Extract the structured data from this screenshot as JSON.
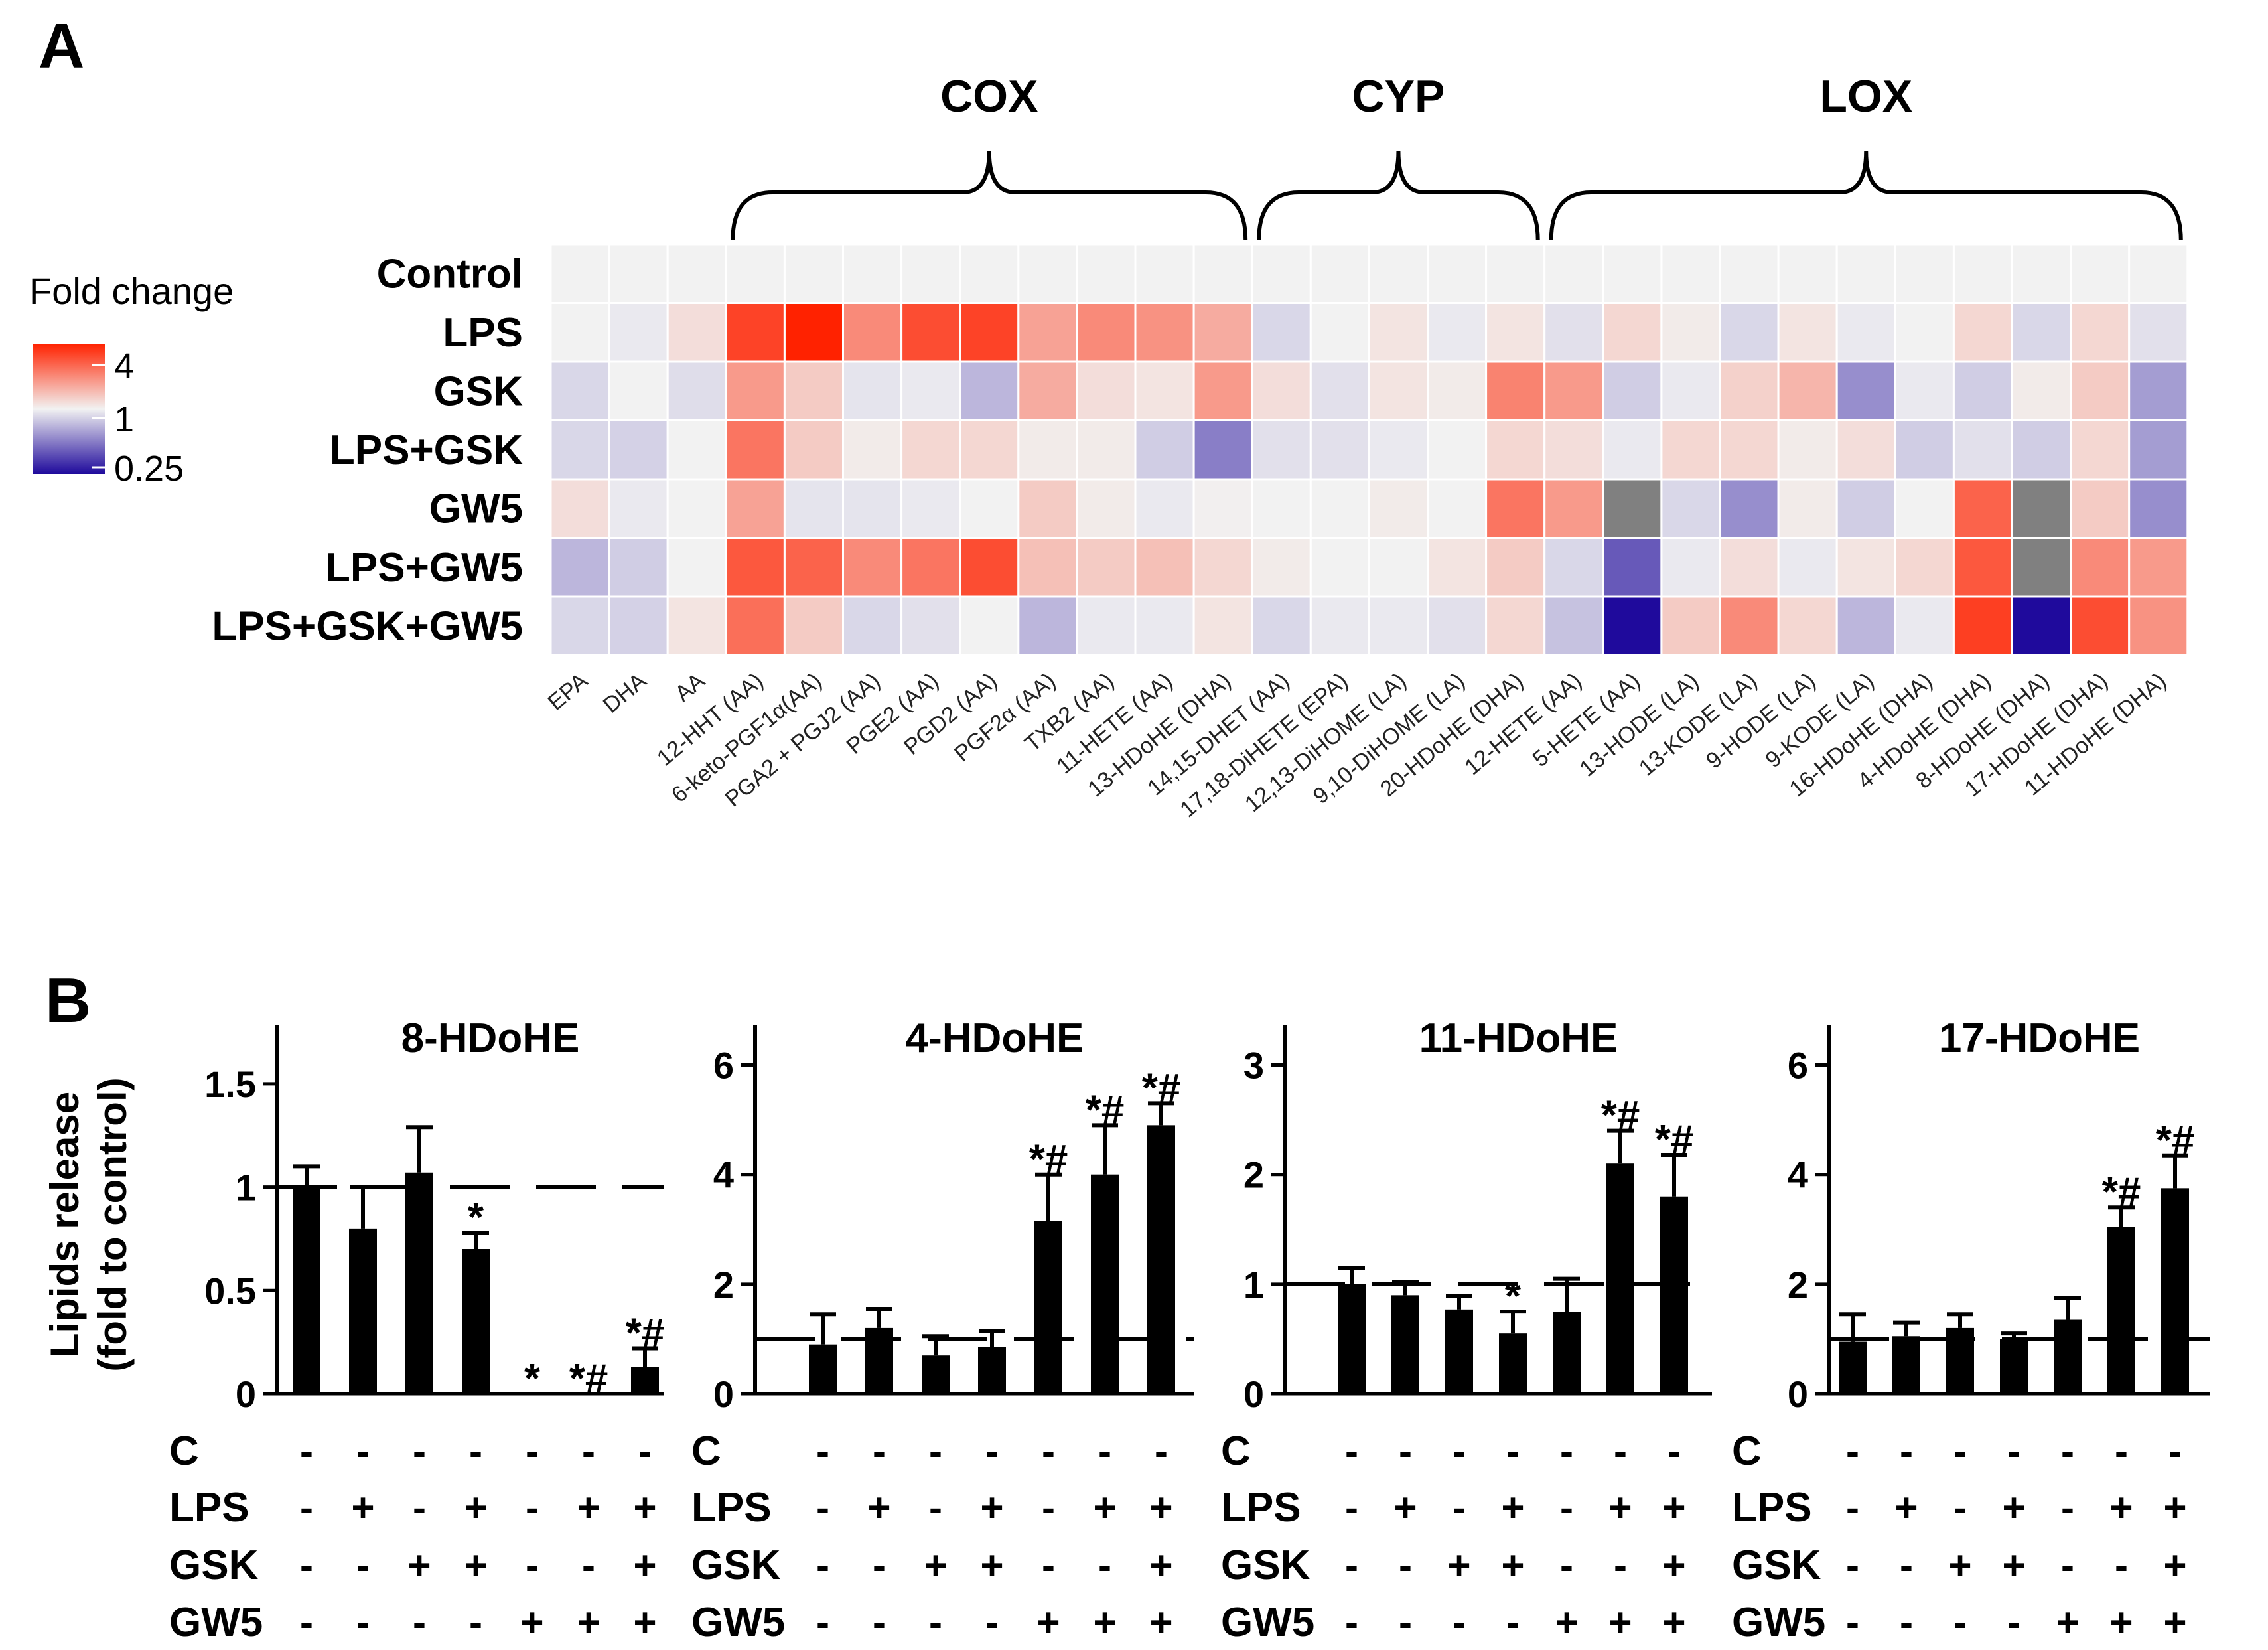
{
  "chart_data": [
    {
      "type": "heatmap",
      "panel": "A",
      "legend": {
        "title": "Fold change",
        "ticks": [
          "4",
          "1",
          "0.25"
        ]
      },
      "groups": [
        {
          "name": "COX",
          "from": "12-HHT (AA)",
          "to": "13-HDoHE (DHA)"
        },
        {
          "name": "CYP",
          "from": "14,15-DHET (AA)",
          "to": "20-HDoHE (DHA)"
        },
        {
          "name": "LOX",
          "from": "12-HETE (AA)",
          "to": "11-HDoHE (DHA)"
        }
      ],
      "rows": [
        "Control",
        "LPS",
        "GSK",
        "LPS+GSK",
        "GW5",
        "LPS+GW5",
        "LPS+GSK+GW5"
      ],
      "columns": [
        "EPA",
        "DHA",
        "AA",
        "12-HHT (AA)",
        "6-keto-PGF1α(AA)",
        "PGA2 + PGJ2 (AA)",
        "PGE2 (AA)",
        "PGD2 (AA)",
        "PGF2α (AA)",
        "TXB2 (AA)",
        "11-HETE (AA)",
        "13-HDoHE (DHA)",
        "14,15-DHET (AA)",
        "17,18-DiHETE (EPA)",
        "12,13-DiHOME (LA)",
        "9,10-DiHOME (LA)",
        "20-HDoHE (DHA)",
        "12-HETE (AA)",
        "5-HETE (AA)",
        "13-HODE (LA)",
        "13-KODE (LA)",
        "9-HODE (LA)",
        "9-KODE (LA)",
        "16-HDoHE (DHA)",
        "4-HDoHE (DHA)",
        "8-HDoHE (DHA)",
        "17-HDoHE (DHA)",
        "11-HDoHE (DHA)"
      ],
      "values": [
        [
          1,
          1,
          1,
          1,
          1,
          1,
          1,
          1,
          1,
          1,
          1,
          1,
          1,
          1,
          1,
          1,
          1,
          1,
          1,
          1,
          1,
          1,
          1,
          1,
          1,
          1,
          1,
          1
        ],
        [
          1,
          0.95,
          1.15,
          3.2,
          4.0,
          2.0,
          3.0,
          3.2,
          1.7,
          2.0,
          1.9,
          1.6,
          0.85,
          1,
          1.1,
          0.95,
          1.1,
          0.9,
          1.2,
          1.05,
          0.85,
          1.1,
          0.95,
          1,
          1.2,
          0.85,
          1.2,
          0.9
        ],
        [
          0.85,
          1,
          0.88,
          1.8,
          1.3,
          0.92,
          0.95,
          0.7,
          1.6,
          1.15,
          1.1,
          1.8,
          1.15,
          0.9,
          1.1,
          1.05,
          2.1,
          1.8,
          0.8,
          0.95,
          1.25,
          1.5,
          0.55,
          0.95,
          0.8,
          1.05,
          1.3,
          0.6
        ],
        [
          0.85,
          0.82,
          1,
          2.3,
          1.3,
          1.05,
          1.2,
          1.2,
          1.05,
          1.05,
          0.8,
          0.5,
          0.9,
          0.9,
          0.95,
          1,
          1.2,
          1.15,
          0.95,
          1.2,
          1.2,
          1.05,
          1.15,
          0.8,
          0.9,
          0.8,
          1.2,
          0.6
        ],
        [
          1.15,
          0.95,
          1,
          1.7,
          0.92,
          0.92,
          0.95,
          1,
          1.3,
          1.05,
          0.95,
          1.02,
          1,
          1,
          1.05,
          1,
          2.3,
          1.8,
          null,
          0.85,
          0.55,
          1.05,
          0.8,
          1,
          2.6,
          null,
          1.3,
          0.55
        ],
        [
          0.7,
          0.8,
          1,
          2.8,
          2.6,
          2.0,
          2.3,
          3.0,
          1.4,
          1.3,
          1.4,
          1.2,
          1.05,
          1,
          1,
          1.1,
          1.3,
          0.85,
          0.4,
          0.95,
          1.15,
          0.95,
          1.1,
          1.2,
          2.8,
          null,
          2.0,
          1.8
        ],
        [
          0.85,
          0.82,
          1.1,
          2.4,
          1.3,
          0.85,
          0.9,
          1,
          0.7,
          0.95,
          0.95,
          1.1,
          0.85,
          0.95,
          0.95,
          0.9,
          1.2,
          0.75,
          0.1,
          1.3,
          2.0,
          1.2,
          0.7,
          0.95,
          3.3,
          0.1,
          3.0,
          1.9
        ]
      ],
      "missing_color": "#808080"
    },
    {
      "type": "bar",
      "panel": "B",
      "title": "8-HDoHE",
      "ylabel_lines": [
        "Lipids release",
        "(fold to control)"
      ],
      "ylim": [
        0,
        1.75
      ],
      "yticks": [
        0,
        0.5,
        1,
        1.5
      ],
      "ytick_labels": [
        "0",
        "0.5",
        "1",
        "1.5"
      ],
      "reference_line": 1,
      "conditions": {
        "C": [
          "-",
          "-",
          "-",
          "-",
          "-",
          "-",
          "-"
        ],
        "LPS": [
          "-",
          "+",
          "-",
          "+",
          "-",
          "+",
          "+"
        ],
        "GSK": [
          "-",
          "-",
          "+",
          "+",
          "-",
          "-",
          "+"
        ],
        "GW5": [
          "-",
          "-",
          "-",
          "-",
          "+",
          "+",
          "+"
        ]
      },
      "values": [
        1.0,
        0.8,
        1.07,
        0.7,
        0.0,
        0.0,
        0.13
      ],
      "errors": [
        0.1,
        0.2,
        0.22,
        0.08,
        0.0,
        0.0,
        0.09
      ],
      "significance": [
        "",
        "",
        "",
        "*",
        "*",
        "*#",
        "*#"
      ]
    },
    {
      "type": "bar",
      "panel": "B",
      "title": "4-HDoHE",
      "ylim": [
        0,
        6.6
      ],
      "yticks": [
        0,
        2,
        4,
        6
      ],
      "ytick_labels": [
        "0",
        "2",
        "4",
        "6"
      ],
      "reference_line": 1,
      "conditions": {
        "C": [
          "-",
          "-",
          "-",
          "-",
          "-",
          "-",
          "-"
        ],
        "LPS": [
          "-",
          "+",
          "-",
          "+",
          "-",
          "+",
          "+"
        ],
        "GSK": [
          "-",
          "-",
          "+",
          "+",
          "-",
          "-",
          "+"
        ],
        "GW5": [
          "-",
          "-",
          "-",
          "-",
          "+",
          "+",
          "+"
        ]
      },
      "values": [
        0.9,
        1.2,
        0.7,
        0.85,
        3.15,
        4.0,
        4.9
      ],
      "errors": [
        0.55,
        0.35,
        0.35,
        0.3,
        0.85,
        0.9,
        0.4
      ],
      "significance": [
        "",
        "",
        "",
        "",
        "*#",
        "*#",
        "*#"
      ]
    },
    {
      "type": "bar",
      "panel": "B",
      "title": "11-HDoHE",
      "ylim": [
        0,
        3.3
      ],
      "yticks": [
        0,
        1,
        2,
        3
      ],
      "ytick_labels": [
        "0",
        "1",
        "2",
        "3"
      ],
      "reference_line": 1,
      "conditions": {
        "C": [
          "-",
          "-",
          "-",
          "-",
          "-",
          "-",
          "-"
        ],
        "LPS": [
          "-",
          "+",
          "-",
          "+",
          "-",
          "+",
          "+"
        ],
        "GSK": [
          "-",
          "-",
          "+",
          "+",
          "-",
          "-",
          "+"
        ],
        "GW5": [
          "-",
          "-",
          "-",
          "-",
          "+",
          "+",
          "+"
        ]
      },
      "values": [
        1.0,
        0.9,
        0.77,
        0.55,
        0.75,
        2.1,
        1.8
      ],
      "errors": [
        0.15,
        0.12,
        0.12,
        0.2,
        0.3,
        0.3,
        0.38
      ],
      "significance": [
        "",
        "",
        "",
        "*",
        "",
        "*#",
        "*#"
      ]
    },
    {
      "type": "bar",
      "panel": "B",
      "title": "17-HDoHE",
      "ylim": [
        0,
        6.6
      ],
      "yticks": [
        0,
        2,
        4,
        6
      ],
      "ytick_labels": [
        "0",
        "2",
        "4",
        "6"
      ],
      "reference_line": 1,
      "conditions": {
        "C": [
          "-",
          "-",
          "-",
          "-",
          "-",
          "-",
          "-"
        ],
        "LPS": [
          "-",
          "+",
          "-",
          "+",
          "-",
          "+",
          "+"
        ],
        "GSK": [
          "-",
          "-",
          "+",
          "+",
          "-",
          "-",
          "+"
        ],
        "GW5": [
          "-",
          "-",
          "-",
          "-",
          "+",
          "+",
          "+"
        ]
      },
      "values": [
        0.95,
        1.05,
        1.2,
        1.0,
        1.35,
        3.05,
        3.75
      ],
      "errors": [
        0.5,
        0.25,
        0.25,
        0.1,
        0.4,
        0.35,
        0.6
      ],
      "significance": [
        "",
        "",
        "",
        "",
        "",
        "*#",
        "*#"
      ]
    }
  ],
  "panel_labels": {
    "a": "A",
    "b": "B"
  },
  "colors": {
    "high": "#ff2200",
    "mid": "#f2f2f2",
    "low": "#1f0a9c",
    "bar": "#000000"
  }
}
